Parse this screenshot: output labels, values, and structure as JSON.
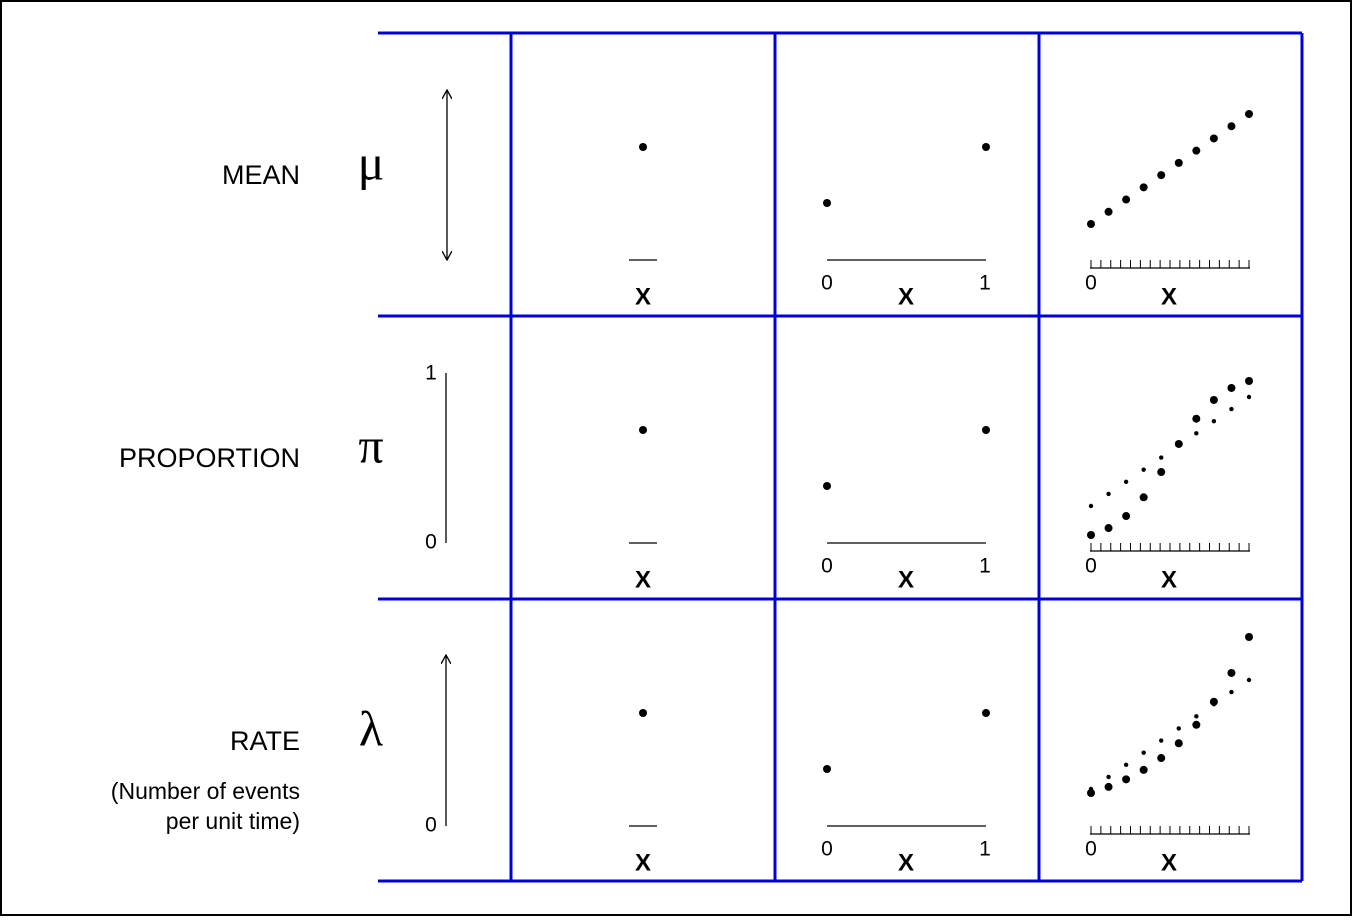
{
  "rows": [
    {
      "label": "MEAN",
      "symbol": "μ"
    },
    {
      "label": "PROPORTION",
      "symbol": "π",
      "axis_top": "1",
      "axis_bottom": "0"
    },
    {
      "label": "RATE",
      "symbol": "λ",
      "note": [
        "(Number of events",
        "per unit time)"
      ],
      "axis_bottom": "0"
    }
  ],
  "x_label": "X",
  "x_ticks": [
    "0",
    "1"
  ]
}
